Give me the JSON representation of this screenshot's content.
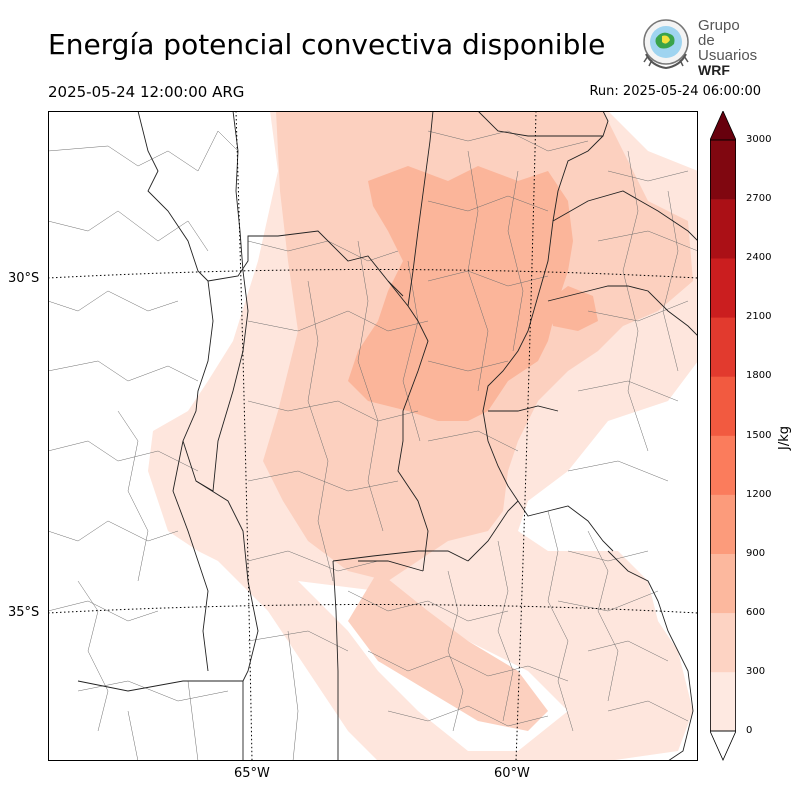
{
  "title": "Energía potencial convectiva disponible",
  "valid_time": "2025-05-24 12:00:00 ARG",
  "run_time": "Run: 2025-05-24 06:00:00",
  "logo": {
    "line1": "Grupo de",
    "line2": "Usuarios",
    "line3": "WRF"
  },
  "map": {
    "lat_labels": [
      "30°S",
      "35°S"
    ],
    "lon_labels": [
      "65°W",
      "60°W"
    ],
    "variable": "CAPE",
    "field_colors": {
      "0-300": "#fee6dd",
      "300-600": "#fcd0bf",
      "600-900": "#fbb59a",
      "boundary_line": "#222222",
      "county_line": "#666666",
      "graticule": "#000000"
    }
  },
  "colorbar": {
    "unit": "J/kg",
    "ticks": [
      "0",
      "300",
      "600",
      "900",
      "1200",
      "1500",
      "1800",
      "2100",
      "2400",
      "2700",
      "3000"
    ],
    "colors": [
      "#fee9e1",
      "#fdd3c3",
      "#fcb89e",
      "#fc9b7b",
      "#fb7c5c",
      "#f25a40",
      "#e23a2e",
      "#cb1e1f",
      "#ab1016",
      "#800710"
    ],
    "under_color": "#ffffff",
    "over_color": "#67000d"
  }
}
